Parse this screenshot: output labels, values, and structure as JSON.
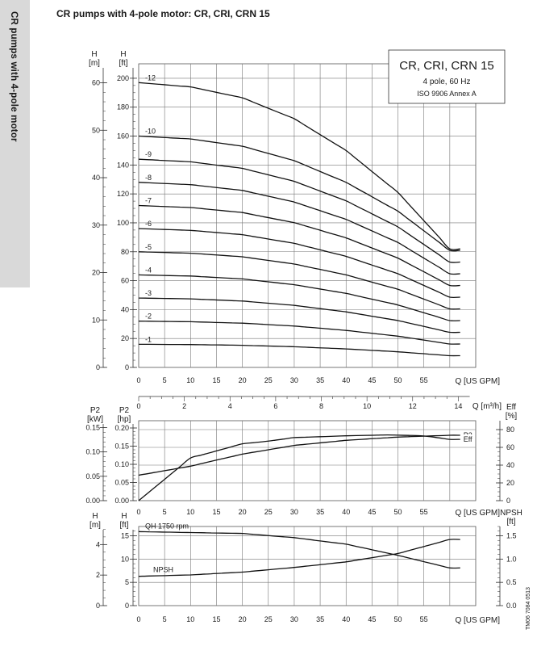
{
  "page_title": "CR pumps with 4-pole motor: CR, CRI, CRN 15",
  "side_tab": "CR pumps with 4-pole motor",
  "doc_code": "TM06 7084 0513",
  "chart_data": [
    {
      "type": "line",
      "name": "head",
      "title_box": {
        "title": "CR, CRI, CRN 15",
        "line1": "4 pole, 60 Hz",
        "line2": "ISO 9906 Annex A"
      },
      "left_axes": [
        {
          "unit_title": "H",
          "unit": "[m]",
          "ylim": [
            0,
            60
          ],
          "ticks": [
            0,
            10,
            20,
            30,
            40,
            50,
            60
          ]
        },
        {
          "unit_title": "H",
          "unit": "[ft]",
          "ylim": [
            0,
            200
          ],
          "ticks": [
            0,
            20,
            40,
            60,
            80,
            100,
            120,
            140,
            160,
            180,
            200
          ]
        }
      ],
      "x_axis": {
        "label": "Q [US GPM]",
        "xlim": [
          0,
          60
        ],
        "ticks": [
          0,
          5,
          10,
          15,
          20,
          25,
          30,
          35,
          40,
          45,
          50,
          55
        ]
      },
      "x_axis_metric": {
        "label": "Q [m³/h]",
        "xlim": [
          0,
          14
        ],
        "ticks": [
          0,
          2,
          4,
          6,
          8,
          10,
          12,
          14
        ]
      },
      "series": [
        {
          "name": "-1",
          "x": [
            0,
            10,
            20,
            30,
            40,
            50,
            60
          ],
          "y": [
            16.0,
            15.8,
            15.3,
            14.3,
            12.8,
            10.8,
            8.1
          ]
        },
        {
          "name": "-2",
          "x": [
            0,
            10,
            20,
            30,
            40,
            50,
            60
          ],
          "y": [
            32.0,
            31.6,
            30.6,
            28.6,
            25.6,
            21.6,
            16.2
          ]
        },
        {
          "name": "-3",
          "x": [
            0,
            10,
            20,
            30,
            40,
            50,
            60
          ],
          "y": [
            48.0,
            47.4,
            45.9,
            42.9,
            38.4,
            32.4,
            24.3
          ]
        },
        {
          "name": "-4",
          "x": [
            0,
            10,
            20,
            30,
            40,
            50,
            60
          ],
          "y": [
            64.0,
            63.2,
            61.2,
            57.2,
            51.2,
            43.2,
            32.4
          ]
        },
        {
          "name": "-5",
          "x": [
            0,
            10,
            20,
            30,
            40,
            50,
            60
          ],
          "y": [
            80.0,
            79.0,
            76.5,
            71.5,
            64.0,
            54.0,
            40.5
          ]
        },
        {
          "name": "-6",
          "x": [
            0,
            10,
            20,
            30,
            40,
            50,
            60
          ],
          "y": [
            96.0,
            94.8,
            91.8,
            85.8,
            76.8,
            64.8,
            48.6
          ]
        },
        {
          "name": "-7",
          "x": [
            0,
            10,
            20,
            30,
            40,
            50,
            60
          ],
          "y": [
            112.0,
            110.6,
            107.1,
            100.1,
            89.6,
            75.6,
            56.7
          ]
        },
        {
          "name": "-8",
          "x": [
            0,
            10,
            20,
            30,
            40,
            50,
            60
          ],
          "y": [
            128.0,
            126.4,
            122.4,
            114.4,
            102.4,
            86.4,
            64.8
          ]
        },
        {
          "name": "-9",
          "x": [
            0,
            10,
            20,
            30,
            40,
            50,
            60
          ],
          "y": [
            144.0,
            142.2,
            137.7,
            128.7,
            115.2,
            97.2,
            72.9
          ]
        },
        {
          "name": "-10",
          "x": [
            0,
            10,
            20,
            30,
            40,
            50,
            60
          ],
          "y": [
            160.0,
            158.0,
            153.0,
            143.0,
            128.0,
            108.0,
            81.0
          ]
        },
        {
          "name": "-12",
          "x": [
            0,
            10,
            20,
            30,
            40,
            50,
            60
          ],
          "y": [
            197.0,
            194.0,
            186.5,
            172.0,
            150.0,
            121.0,
            82.0
          ]
        }
      ]
    },
    {
      "type": "line",
      "name": "power-efficiency",
      "left_axes": [
        {
          "unit_title": "P2",
          "unit": "[kW]",
          "ylim": [
            0,
            0.15
          ],
          "ticks": [
            0.0,
            0.05,
            0.1,
            0.15
          ],
          "tick_labels": [
            "0.00",
            "0.05",
            "0.10",
            "0.15"
          ]
        },
        {
          "unit_title": "P2",
          "unit": "[hp]",
          "ylim": [
            0,
            0.2
          ],
          "ticks": [
            0,
            0.05,
            0.1,
            0.15,
            0.2
          ],
          "tick_labels": [
            "0.00",
            "0.05",
            "0.10",
            "0.15",
            "0.20"
          ]
        }
      ],
      "right_axis": {
        "unit_title": "Eff",
        "unit": "[%]",
        "ylim": [
          0,
          80
        ],
        "ticks": [
          0,
          20,
          40,
          60,
          80
        ]
      },
      "x_axis": {
        "label": "Q [US GPM]",
        "xlim": [
          0,
          60
        ],
        "ticks": [
          0,
          5,
          10,
          15,
          20,
          25,
          30,
          35,
          40,
          45,
          50,
          55
        ]
      },
      "series": [
        {
          "name": "P2",
          "axis": "hp",
          "x": [
            0,
            10,
            20,
            30,
            40,
            50,
            60
          ],
          "y": [
            0.07,
            0.095,
            0.128,
            0.152,
            0.166,
            0.175,
            0.18
          ]
        },
        {
          "name": "Eff",
          "axis": "%",
          "x": [
            0,
            10,
            20,
            25,
            30,
            40,
            48,
            55,
            60
          ],
          "y": [
            0,
            48,
            64,
            67,
            71,
            73,
            74,
            73,
            69
          ]
        }
      ]
    },
    {
      "type": "line",
      "name": "npsh",
      "left_axes": [
        {
          "unit_title": "H",
          "unit": "[m]",
          "ylim": [
            0,
            5
          ],
          "ticks": [
            0,
            2,
            4
          ]
        },
        {
          "unit_title": "H",
          "unit": "[ft]",
          "ylim": [
            0,
            16.4
          ],
          "ticks": [
            0,
            5,
            10,
            15
          ]
        }
      ],
      "right_axis": {
        "unit_title": "NPSH",
        "unit": "[ft]",
        "ylim": [
          0,
          1.7
        ],
        "ticks": [
          0.0,
          0.5,
          1.0,
          1.5
        ],
        "tick_labels": [
          "0.0",
          "0.5",
          "1.0",
          "1.5"
        ]
      },
      "x_axis": {
        "label": "Q [US GPM]",
        "xlim": [
          0,
          60
        ],
        "ticks": [
          0,
          5,
          10,
          15,
          20,
          25,
          30,
          35,
          40,
          45,
          50,
          55
        ]
      },
      "series": [
        {
          "name": "QH 1750 rpm",
          "axis": "H ft",
          "x": [
            0,
            10,
            20,
            30,
            40,
            50,
            60
          ],
          "y": [
            15.9,
            15.7,
            15.5,
            14.6,
            13.2,
            10.8,
            8.1
          ]
        },
        {
          "name": "NPSH",
          "axis": "NPSH ft",
          "x": [
            0,
            10,
            20,
            30,
            40,
            50,
            60
          ],
          "y": [
            0.63,
            0.66,
            0.72,
            0.82,
            0.94,
            1.12,
            1.42
          ]
        }
      ]
    }
  ]
}
